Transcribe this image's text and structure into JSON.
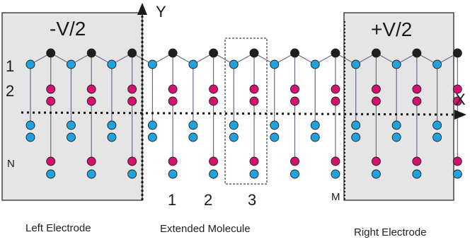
{
  "labels": {
    "left_voltage": "-V/2",
    "right_voltage": "+V/2",
    "y_axis": "Y",
    "x_axis": "X",
    "row_1": "1",
    "row_2": "2",
    "row_n": "N",
    "col_1": "1",
    "col_2": "2",
    "col_3": "3",
    "col_m": "M",
    "left_caption": "Left Electrode",
    "middle_caption": "Extended Molecule",
    "right_caption": "Right Electrode"
  },
  "colors": {
    "electrode_fill": "#e5e5e5",
    "atom_edge": "#1f1f1f",
    "atom_blue": "#1fa2dd",
    "atom_magenta": "#d4116e",
    "bond": "#6b6b8a",
    "axis": "#1a1a1a"
  }
}
